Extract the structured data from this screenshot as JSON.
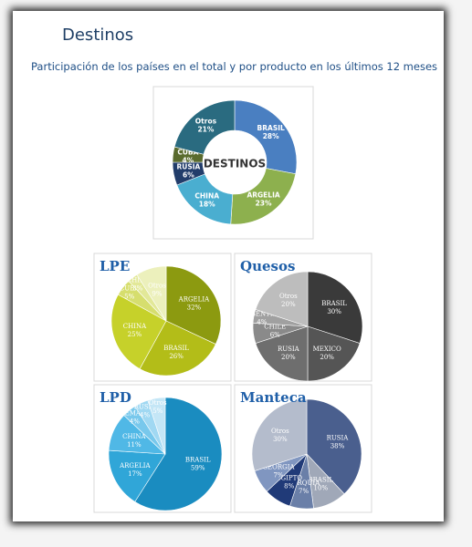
{
  "title": "Destinos",
  "subtitle": "Participación de los países en el total y por producto en los últimos 12 meses",
  "chart_data": [
    {
      "type": "donut",
      "title": "DESTINOS",
      "categories": [
        "BRASIL",
        "ARGELIA",
        "CHINA",
        "RUSIA",
        "CUBA",
        "Otros"
      ],
      "values": [
        28,
        23,
        18,
        6,
        4,
        21
      ],
      "value_labels": [
        "28%",
        "23%",
        "18%",
        "6%",
        "4%",
        "21%"
      ],
      "colors": [
        "#4a7fc1",
        "#8db04e",
        "#4aaed0",
        "#223d6b",
        "#5a6b2e",
        "#2a6b80"
      ]
    },
    {
      "type": "pie",
      "title": "LPE",
      "categories": [
        "ARGELIA",
        "BRASIL",
        "CHINA",
        "CUBA",
        "CHILE",
        "Otros"
      ],
      "values": [
        32,
        26,
        25,
        5,
        3,
        9
      ],
      "value_labels": [
        "32%",
        "26%",
        "25%",
        "5%",
        "3%",
        "9%"
      ],
      "colors": [
        "#8c9a10",
        "#b3bd18",
        "#c6d12a",
        "#d6de6e",
        "#e2e898",
        "#ecf0bc"
      ]
    },
    {
      "type": "pie",
      "title": "Quesos",
      "categories": [
        "BRASIL",
        "MEXICO",
        "RUSIA",
        "CHILE",
        "ARGENTINA",
        "Otros"
      ],
      "values": [
        30,
        20,
        20,
        6,
        4,
        20
      ],
      "value_labels": [
        "30%",
        "20%",
        "20%",
        "6%",
        "4%",
        "20%"
      ],
      "colors": [
        "#3a3a3a",
        "#555555",
        "#6e6e6e",
        "#8a8a8a",
        "#a0a0a0",
        "#bdbdbd"
      ]
    },
    {
      "type": "pie",
      "title": "LPD",
      "categories": [
        "BRASIL",
        "ARGELIA",
        "CHINA",
        "ALEMANIA",
        "RUSIA",
        "Otros"
      ],
      "values": [
        59,
        17,
        11,
        4,
        4,
        5
      ],
      "value_labels": [
        "59%",
        "17%",
        "11%",
        "4%",
        "4%",
        "5%"
      ],
      "colors": [
        "#1a8cc0",
        "#30a6d8",
        "#50b8e6",
        "#78c8ec",
        "#a0d8f2",
        "#c4e6f6"
      ]
    },
    {
      "type": "pie",
      "title": "Manteca",
      "categories": [
        "RUSIA",
        "BRASIL",
        "TURQUIA",
        "EGIPTO",
        "GEORGIA",
        "Otros"
      ],
      "values": [
        38,
        10,
        7,
        8,
        7,
        30
      ],
      "value_labels": [
        "38%",
        "10%",
        "7%",
        "8%",
        "7%",
        "30%"
      ],
      "colors": [
        "#4a5f8e",
        "#a0a8b8",
        "#6a7fa8",
        "#203a78",
        "#8096c0",
        "#b4bccc"
      ]
    }
  ]
}
